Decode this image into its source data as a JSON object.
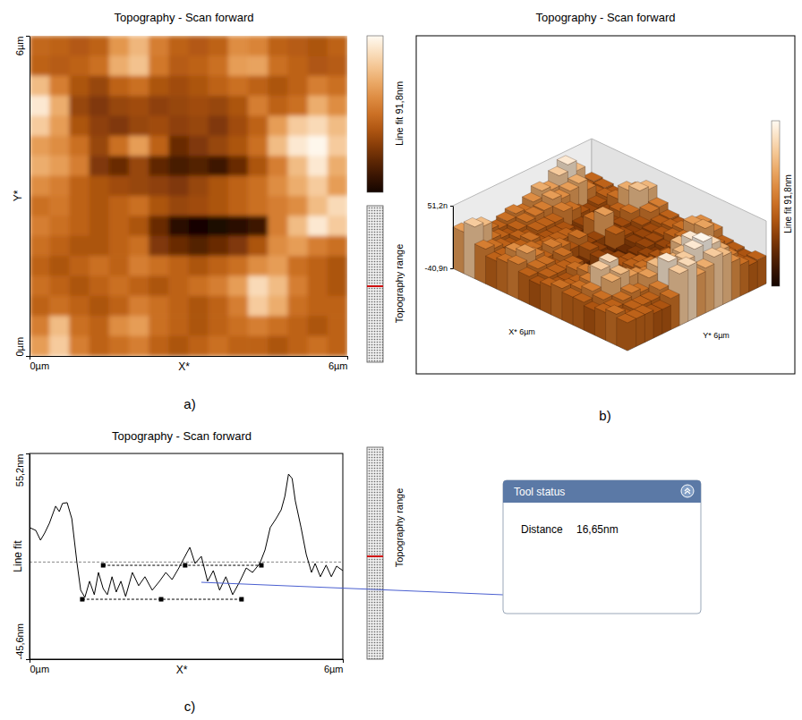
{
  "chart_data": [
    {
      "type": "heatmap",
      "panel": "a)",
      "title": "Topography - Scan forward",
      "xlabel": "X*",
      "ylabel": "Y*",
      "xlim": [
        0,
        6
      ],
      "ylim": [
        0,
        6
      ],
      "xticks": [
        {
          "value": 0,
          "label": "0µm"
        },
        {
          "value": 6,
          "label": "6µm"
        }
      ],
      "yticks": [
        {
          "value": 0,
          "label": "0µm"
        },
        {
          "value": 6,
          "label": "6µm"
        }
      ],
      "colorbar_label": "Line fit 91,8nm",
      "color_range": [
        -40.9,
        51.2
      ],
      "range_bar_label": "Topography range",
      "cells": [
        [
          2,
          0,
          -3,
          0,
          18,
          28,
          10,
          0,
          -3,
          0,
          15,
          12,
          0,
          -2,
          -5,
          0
        ],
        [
          0,
          -2,
          0,
          5,
          25,
          32,
          8,
          -2,
          0,
          5,
          20,
          22,
          5,
          0,
          -4,
          -2
        ],
        [
          30,
          10,
          -5,
          -10,
          0,
          5,
          -5,
          -8,
          -5,
          0,
          5,
          0,
          -5,
          0,
          10,
          5
        ],
        [
          45,
          25,
          -10,
          -15,
          -10,
          -8,
          -12,
          -10,
          -8,
          -10,
          -5,
          10,
          0,
          5,
          25,
          15
        ],
        [
          35,
          20,
          -5,
          -12,
          -15,
          -10,
          -8,
          -12,
          -10,
          -15,
          -8,
          0,
          20,
          35,
          40,
          30
        ],
        [
          20,
          15,
          5,
          -10,
          5,
          20,
          0,
          -20,
          -15,
          -10,
          -5,
          5,
          30,
          45,
          50,
          35
        ],
        [
          25,
          20,
          10,
          -15,
          -20,
          -10,
          -22,
          -28,
          -25,
          -30,
          -20,
          -5,
          10,
          30,
          45,
          25
        ],
        [
          15,
          10,
          0,
          -5,
          -8,
          -10,
          -12,
          -15,
          -10,
          -5,
          0,
          5,
          15,
          25,
          35,
          20
        ],
        [
          5,
          8,
          0,
          -5,
          0,
          5,
          -5,
          -10,
          -8,
          -5,
          0,
          5,
          10,
          15,
          30,
          40
        ],
        [
          10,
          5,
          0,
          -5,
          0,
          -5,
          -20,
          -35,
          -40,
          -38,
          -35,
          -30,
          10,
          30,
          45,
          35
        ],
        [
          5,
          0,
          -5,
          -5,
          0,
          5,
          -15,
          -20,
          -25,
          -20,
          -15,
          -5,
          15,
          20,
          10,
          5
        ],
        [
          0,
          -5,
          0,
          5,
          0,
          10,
          5,
          0,
          -5,
          0,
          5,
          15,
          20,
          5,
          0,
          -5
        ],
        [
          5,
          0,
          -5,
          0,
          5,
          0,
          -5,
          0,
          5,
          10,
          20,
          40,
          30,
          10,
          0,
          -5
        ],
        [
          0,
          5,
          0,
          -5,
          0,
          10,
          5,
          0,
          -5,
          0,
          10,
          35,
          25,
          5,
          0,
          0
        ],
        [
          10,
          30,
          5,
          0,
          15,
          20,
          5,
          0,
          -5,
          0,
          5,
          10,
          5,
          0,
          -5,
          0
        ],
        [
          20,
          35,
          10,
          0,
          5,
          10,
          0,
          -5,
          0,
          5,
          0,
          0,
          -5,
          0,
          5,
          0
        ]
      ]
    },
    {
      "type": "surface3d",
      "panel": "b)",
      "title": "Topography - Scan forward",
      "x_label": "X* 6µm",
      "y_label": "Y* 6µm",
      "zlim": [
        -40.9,
        51.2
      ],
      "zticks": [
        {
          "value": -40.9,
          "label": "-40,9n"
        },
        {
          "value": 51.2,
          "label": "51,2n"
        }
      ],
      "colorbar_label": "Line fit 91,8nm"
    },
    {
      "type": "line",
      "panel": "c)",
      "title": "Topography - Scan forward",
      "xlabel": "X*",
      "ylabel": "Line fit",
      "xlim": [
        0,
        6
      ],
      "ylim": [
        -45.6,
        55.2
      ],
      "xticks": [
        {
          "value": 0,
          "label": "0µm"
        },
        {
          "value": 6,
          "label": "6µm"
        }
      ],
      "yticks": [
        {
          "value": -45.6,
          "label": "-45,6nm"
        },
        {
          "value": 55.2,
          "label": "55,2nm"
        }
      ],
      "color": "#000000",
      "x": [
        0,
        0.12,
        0.21,
        0.29,
        0.38,
        0.5,
        0.57,
        0.63,
        0.72,
        0.81,
        0.91,
        0.98,
        1.06,
        1.15,
        1.24,
        1.32,
        1.41,
        1.49,
        1.58,
        1.66,
        1.75,
        1.84,
        1.97,
        2.09,
        2.21,
        2.35,
        2.49,
        2.61,
        2.73,
        2.86,
        2.95,
        3.07,
        3.17,
        3.29,
        3.41,
        3.52,
        3.64,
        3.76,
        3.89,
        4.03,
        4.15,
        4.27,
        4.41,
        4.51,
        4.61,
        4.72,
        4.82,
        4.89,
        4.96,
        5.03,
        5.09,
        5.2,
        5.3,
        5.4,
        5.47,
        5.57,
        5.68,
        5.78,
        5.88,
        6
      ],
      "values": [
        18.9,
        17.5,
        12.7,
        16.2,
        21.0,
        29.4,
        26.7,
        30.7,
        31.1,
        23.2,
        1.3,
        -11.8,
        -15.3,
        -7.4,
        -14.0,
        -3.1,
        -11.0,
        -14.0,
        -5.2,
        -12.7,
        -7.4,
        -14.9,
        -3.1,
        -9.6,
        -5.2,
        -11.8,
        -7.4,
        -3.1,
        -6.6,
        -0.9,
        3.5,
        9.2,
        1.3,
        4.8,
        -7.4,
        -2.2,
        -11.8,
        -5.2,
        -14.0,
        -7.4,
        -0.9,
        -3.1,
        1.3,
        7.9,
        18.9,
        23.2,
        27.6,
        34.2,
        45.1,
        42.9,
        32.0,
        18.9,
        5.7,
        -3.1,
        1.3,
        -5.2,
        0.5,
        -5.2,
        0.0,
        -2.2
      ],
      "reference_y": 2.0,
      "measure": {
        "upper": {
          "y": 0.4,
          "x": [
            1.41,
            2.98,
            4.44
          ]
        },
        "lower": {
          "y": -16.25,
          "x": [
            1.01,
            2.52,
            4.06
          ]
        }
      },
      "range_bar_label": "Topography range",
      "tool_status": {
        "title": "Tool status",
        "label": "Distance",
        "distance": "16,65nm"
      }
    }
  ]
}
